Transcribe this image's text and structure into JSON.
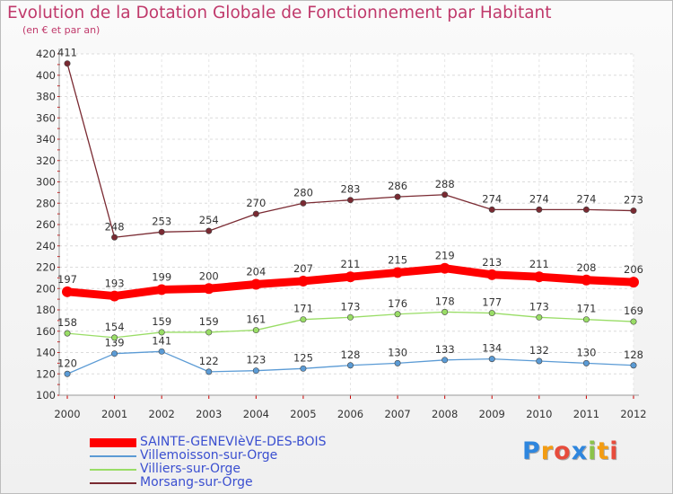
{
  "header": {
    "title": "Evolution de la Dotation Globale de Fonctionnement par Habitant",
    "subtitle": "(en € et par an)"
  },
  "logo": {
    "text": "Proxiti",
    "colors": [
      "#2e86de",
      "#f39c12",
      "#e74c3c",
      "#2e86de",
      "#8bc34a",
      "#f39c12",
      "#e74c3c"
    ]
  },
  "chart_data": {
    "type": "line",
    "x": [
      "2000",
      "2001",
      "2002",
      "2003",
      "2004",
      "2005",
      "2006",
      "2007",
      "2008",
      "2009",
      "2010",
      "2011",
      "2012"
    ],
    "ylim": [
      100,
      420
    ],
    "yticks": [
      100,
      120,
      140,
      160,
      180,
      200,
      220,
      240,
      260,
      280,
      300,
      320,
      340,
      360,
      380,
      400,
      420
    ],
    "grid": true,
    "legend_position": "bottom-left",
    "series": [
      {
        "name": "SAINTE-GENEVIèVE-DES-BOIS",
        "color": "#ff0000",
        "values": [
          197,
          193,
          199,
          200,
          204,
          207,
          211,
          215,
          219,
          213,
          211,
          208,
          206
        ]
      },
      {
        "name": "Villemoisson-sur-Orge",
        "color": "#5b9bd5",
        "values": [
          120,
          139,
          141,
          122,
          123,
          125,
          128,
          130,
          133,
          134,
          132,
          130,
          128
        ]
      },
      {
        "name": "Villiers-sur-Orge",
        "color": "#99dd66",
        "values": [
          158,
          154,
          159,
          159,
          161,
          171,
          173,
          176,
          178,
          177,
          173,
          171,
          169
        ]
      },
      {
        "name": "Morsang-sur-Orge",
        "color": "#7a2a32",
        "values": [
          411,
          248,
          253,
          254,
          270,
          280,
          283,
          286,
          288,
          274,
          274,
          274,
          273
        ]
      }
    ]
  }
}
